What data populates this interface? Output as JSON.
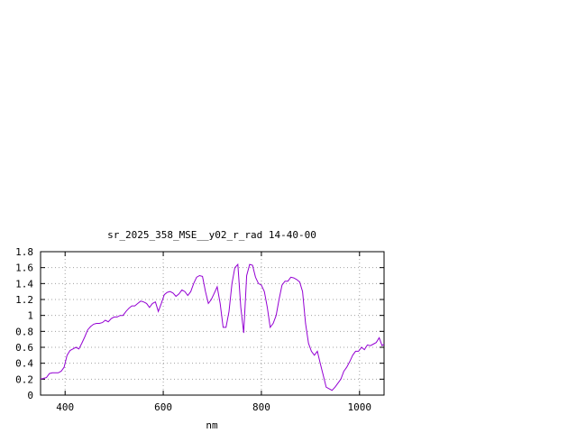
{
  "chart_data": {
    "type": "line",
    "title": "sr_2025_358_MSE__y02_r_rad 14-40-00",
    "xlabel": "nm",
    "ylabel": "",
    "xlim": [
      350,
      1050
    ],
    "ylim": [
      0,
      1.8
    ],
    "grid": true,
    "line_color": "#9400d3",
    "x_ticks": [
      400,
      600,
      800,
      1000
    ],
    "y_ticks": [
      0,
      0.2,
      0.4,
      0.6,
      0.8,
      1,
      1.2,
      1.4,
      1.6,
      1.8
    ],
    "x_tick_labels": [
      "400",
      "600",
      "800",
      "1000"
    ],
    "y_tick_labels": [
      "0",
      "0.2",
      "0.4",
      "0.6",
      "0.8",
      "1",
      "1.2",
      "1.4",
      "1.6",
      "1.8"
    ],
    "series": [
      {
        "x": [
          350,
          356,
          362,
          368,
          374,
          380,
          386,
          392,
          398,
          404,
          410,
          416,
          422,
          428,
          434,
          440,
          446,
          452,
          458,
          464,
          470,
          476,
          482,
          488,
          494,
          500,
          506,
          512,
          518,
          524,
          530,
          536,
          542,
          548,
          554,
          560,
          566,
          572,
          578,
          584,
          590,
          596,
          602,
          608,
          614,
          620,
          626,
          632,
          638,
          644,
          650,
          656,
          662,
          668,
          674,
          680,
          686,
          692,
          698,
          704,
          710,
          716,
          722,
          728,
          734,
          740,
          746,
          752,
          758,
          764,
          770,
          776,
          782,
          788,
          794,
          800,
          806,
          812,
          818,
          824,
          830,
          836,
          842,
          848,
          854,
          860,
          866,
          872,
          878,
          884,
          890,
          896,
          902,
          908,
          914,
          920,
          926,
          932,
          938,
          944,
          950,
          956,
          962,
          968,
          974,
          980,
          986,
          992,
          998,
          1004,
          1010,
          1016,
          1022,
          1028,
          1034,
          1040,
          1046,
          1050
        ],
        "y": [
          0.2,
          0.21,
          0.22,
          0.27,
          0.28,
          0.28,
          0.28,
          0.3,
          0.35,
          0.5,
          0.56,
          0.58,
          0.6,
          0.58,
          0.65,
          0.73,
          0.82,
          0.86,
          0.89,
          0.9,
          0.9,
          0.91,
          0.94,
          0.92,
          0.96,
          0.98,
          0.98,
          1.0,
          1.0,
          1.05,
          1.09,
          1.12,
          1.12,
          1.15,
          1.18,
          1.17,
          1.15,
          1.1,
          1.15,
          1.17,
          1.05,
          1.15,
          1.26,
          1.29,
          1.3,
          1.28,
          1.24,
          1.27,
          1.32,
          1.3,
          1.25,
          1.3,
          1.4,
          1.48,
          1.5,
          1.49,
          1.3,
          1.15,
          1.2,
          1.28,
          1.36,
          1.15,
          0.85,
          0.85,
          1.05,
          1.4,
          1.6,
          1.64,
          1.1,
          0.78,
          1.5,
          1.64,
          1.63,
          1.48,
          1.4,
          1.38,
          1.3,
          1.1,
          0.85,
          0.9,
          1.0,
          1.2,
          1.38,
          1.43,
          1.43,
          1.48,
          1.47,
          1.45,
          1.42,
          1.3,
          0.9,
          0.65,
          0.55,
          0.5,
          0.55,
          0.4,
          0.25,
          0.1,
          0.08,
          0.06,
          0.1,
          0.15,
          0.2,
          0.3,
          0.35,
          0.42,
          0.5,
          0.55,
          0.55,
          0.6,
          0.57,
          0.63,
          0.62,
          0.64,
          0.66,
          0.72,
          0.62,
          0.64
        ]
      }
    ]
  }
}
